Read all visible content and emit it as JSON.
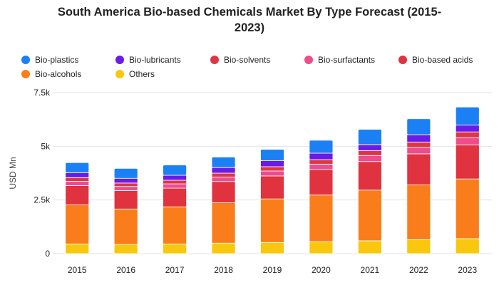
{
  "chart_data": {
    "type": "bar",
    "stacked": true,
    "title": "South America Bio-based Chemicals Market By Type Forecast (2015-2023)",
    "title_lines": [
      "South America Bio-based Chemicals Market By Type Forecast (2015-",
      "2023)"
    ],
    "xlabel": "",
    "ylabel": "USD Mn",
    "ylim": [
      0,
      7500
    ],
    "y_ticks": [
      0,
      2500,
      5000,
      7500
    ],
    "y_tick_labels": [
      "0",
      "2.5k",
      "5k",
      "7.5k"
    ],
    "grid": true,
    "legend_position": "top",
    "categories": [
      "2015",
      "2016",
      "2017",
      "2018",
      "2019",
      "2020",
      "2021",
      "2022",
      "2023"
    ],
    "series": [
      {
        "name": "Others",
        "color": "#f8c70e",
        "values": [
          450,
          430,
          450,
          490,
          520,
          560,
          600,
          650,
          700
        ]
      },
      {
        "name": "Bio-alcohols",
        "color": "#fa7d1b",
        "values": [
          1820,
          1650,
          1730,
          1880,
          2030,
          2170,
          2360,
          2550,
          2780
        ]
      },
      {
        "name": "Bio-based acids",
        "color": "#e0323f",
        "values": [
          900,
          860,
          870,
          990,
          1070,
          1190,
          1330,
          1450,
          1590
        ]
      },
      {
        "name": "Bio-surfactants",
        "color": "#ee4c8d",
        "values": [
          200,
          190,
          200,
          210,
          230,
          250,
          280,
          300,
          330
        ]
      },
      {
        "name": "Bio-solvents",
        "color": "#dd3744",
        "values": [
          170,
          160,
          170,
          180,
          200,
          210,
          230,
          250,
          270
        ]
      },
      {
        "name": "Bio-lubricants",
        "color": "#6a1be7",
        "values": [
          230,
          220,
          230,
          260,
          280,
          300,
          280,
          340,
          320
        ]
      },
      {
        "name": "Bio-plastics",
        "color": "#1c80f5",
        "values": [
          470,
          460,
          480,
          490,
          530,
          600,
          710,
          740,
          840
        ]
      }
    ]
  },
  "legend": {
    "rows": [
      [
        "Bio-plastics",
        "Bio-lubricants",
        "Bio-solvents",
        "Bio-surfactants",
        "Bio-based acids"
      ],
      [
        "Bio-alcohols",
        "Others"
      ]
    ]
  }
}
